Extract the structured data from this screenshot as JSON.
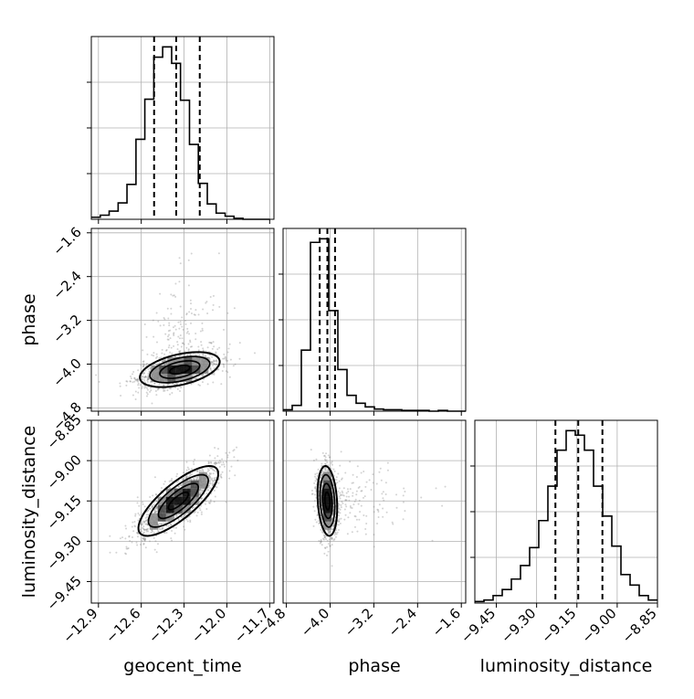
{
  "chart_data": {
    "type": "corner",
    "parameters": [
      "geocent_time",
      "phase",
      "luminosity_distance"
    ],
    "axis_labels": {
      "geocent_time": "geocent_time",
      "phase": "phase",
      "luminosity_distance": "luminosity_distance"
    },
    "ticks": {
      "geocent_time": [
        "−12.9",
        "−12.6",
        "−12.3",
        "−12.0",
        "−11.7"
      ],
      "phase": [
        "−4.8",
        "−4.0",
        "−3.2",
        "−2.4",
        "−1.6"
      ],
      "luminosity_distance": [
        "−9.45",
        "−9.30",
        "−9.15",
        "−9.00",
        "−8.85"
      ]
    },
    "tick_values": {
      "geocent_time": [
        -12.9,
        -12.6,
        -12.3,
        -12.0,
        -11.7
      ],
      "phase": [
        -4.8,
        -4.0,
        -3.2,
        -2.4,
        -1.6
      ],
      "luminosity_distance": [
        -9.45,
        -9.3,
        -9.15,
        -9.0,
        -8.85
      ]
    },
    "ranges": {
      "geocent_time": [
        -12.95,
        -11.67
      ],
      "phase": [
        -4.86,
        -1.52
      ],
      "luminosity_distance": [
        -9.53,
        -8.85
      ]
    },
    "grid": true,
    "marginals": [
      {
        "parameter": "geocent_time",
        "bin_edges": [
          -12.95,
          -12.887,
          -12.825,
          -12.762,
          -12.7,
          -12.637,
          -12.575,
          -12.512,
          -12.45,
          -12.387,
          -12.325,
          -12.262,
          -12.2,
          -12.137,
          -12.075,
          -12.012,
          -11.95,
          -11.887,
          -11.825,
          -11.762,
          -11.7
        ],
        "counts": [
          2,
          4,
          8,
          16,
          34,
          78,
          117,
          158,
          168,
          152,
          116,
          73,
          35,
          15,
          6,
          3,
          1,
          0,
          0,
          0
        ],
        "quantiles": [
          -12.51,
          -12.355,
          -12.19
        ]
      },
      {
        "parameter": "phase",
        "bin_edges": [
          -4.86,
          -4.693,
          -4.526,
          -4.359,
          -4.192,
          -4.025,
          -3.858,
          -3.691,
          -3.524,
          -3.357,
          -3.19,
          -3.023,
          -2.856,
          -2.689,
          -2.522,
          -2.355,
          -2.188,
          -2.021,
          -1.854,
          -1.687,
          -1.52
        ],
        "counts": [
          2,
          8,
          85,
          235,
          240,
          140,
          58,
          22,
          11,
          6,
          3,
          2,
          2,
          1,
          1,
          1,
          0,
          1,
          0,
          0
        ],
        "quantiles": [
          -4.19,
          -4.05,
          -3.91
        ]
      },
      {
        "parameter": "luminosity_distance",
        "bin_edges": [
          -9.53,
          -9.496,
          -9.462,
          -9.428,
          -9.394,
          -9.36,
          -9.326,
          -9.292,
          -9.258,
          -9.224,
          -9.19,
          -9.156,
          -9.122,
          -9.088,
          -9.054,
          -9.02,
          -8.986,
          -8.952,
          -8.918,
          -8.884,
          -8.85
        ],
        "counts": [
          1,
          2,
          5,
          9,
          16,
          25,
          37,
          55,
          78,
          102,
          115,
          112,
          102,
          78,
          58,
          38,
          19,
          12,
          5,
          2
        ],
        "quantiles": [
          -9.23,
          -9.145,
          -9.055
        ]
      }
    ],
    "pairs": [
      {
        "x": "geocent_time",
        "y": "phase",
        "center": [
          -12.33,
          -4.1
        ],
        "std": [
          0.14,
          0.16
        ],
        "correlation": 0.45,
        "contour_sigma": [
          0.5,
          1.0,
          1.5,
          2.0
        ]
      },
      {
        "x": "geocent_time",
        "y": "luminosity_distance",
        "center": [
          -12.34,
          -9.15
        ],
        "std": [
          0.14,
          0.065
        ],
        "correlation": 0.78,
        "contour_sigma": [
          0.5,
          1.0,
          1.5,
          2.0
        ]
      },
      {
        "x": "phase",
        "y": "luminosity_distance",
        "center": [
          -4.05,
          -9.15
        ],
        "std": [
          0.09,
          0.065
        ],
        "correlation": -0.2,
        "contour_sigma": [
          0.5,
          1.0,
          1.5,
          2.0
        ]
      }
    ],
    "colors": {
      "line": "#000000",
      "grid": "#b0b0b0",
      "points": "#808080"
    }
  }
}
